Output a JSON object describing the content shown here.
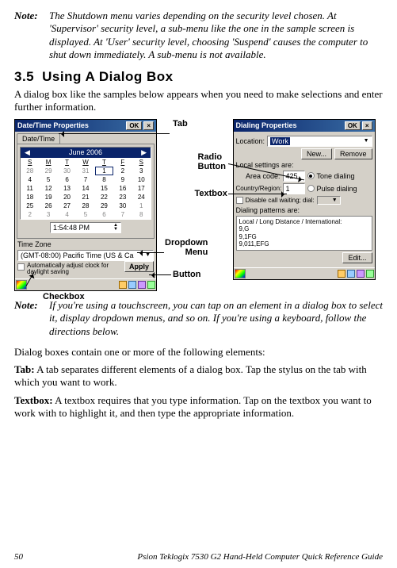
{
  "note1": {
    "label": "Note:",
    "text": "The Shutdown menu varies depending on the security level chosen. At 'Supervisor' security level, a sub-menu like the one in the sample screen is displayed. At 'User' security level, choosing 'Suspend' causes the computer to shut down immediately. A sub-menu is not available."
  },
  "heading": {
    "num": "3.5",
    "title": "Using A Dialog Box"
  },
  "intro": "A dialog box like the samples below appears when you need to make selections and enter further information.",
  "callouts": {
    "tab": "Tab",
    "radio": "Radio Button",
    "textbox": "Textbox",
    "dropdown": "Dropdown Menu",
    "button": "Button",
    "checkbox": "Checkbox"
  },
  "dlg1": {
    "title": "Date/Time Properties",
    "ok": "OK",
    "tab": "Date/Time",
    "month": "June 2006",
    "dow": [
      "S",
      "M",
      "T",
      "W",
      "T",
      "F",
      "S"
    ],
    "weeks": [
      [
        "28",
        "29",
        "30",
        "31",
        "1",
        "2",
        "3"
      ],
      [
        "4",
        "5",
        "6",
        "7",
        "8",
        "9",
        "10"
      ],
      [
        "11",
        "12",
        "13",
        "14",
        "15",
        "16",
        "17"
      ],
      [
        "18",
        "19",
        "20",
        "21",
        "22",
        "23",
        "24"
      ],
      [
        "25",
        "26",
        "27",
        "28",
        "29",
        "30",
        "1"
      ],
      [
        "2",
        "3",
        "4",
        "5",
        "6",
        "7",
        "8"
      ]
    ],
    "selected_day": "1",
    "time": "1:54:48 PM",
    "tz_label": "Time Zone",
    "tz_value": "(GMT-08:00) Pacific Time (US & Ca",
    "chk": "Automatically adjust clock for daylight saving",
    "apply": "Apply"
  },
  "dlg2": {
    "title": "Dialing Properties",
    "ok": "OK",
    "loc_label": "Location:",
    "loc_value": "Work",
    "new_btn": "New...",
    "remove_btn": "Remove",
    "local_label": "Local settings are:",
    "area_label": "Area code:",
    "area_value": "425",
    "tone": "Tone dialing",
    "pulse": "Pulse dialing",
    "country_label": "Country/Region:",
    "country_value": "1",
    "callwait": "Disable call waiting; dial:",
    "pat_label": "Dialing patterns are:",
    "pat_text": "Local / Long Distance / International:\n9,G\n9,1FG\n9,011,EFG",
    "edit_btn": "Edit..."
  },
  "note2": {
    "label": "Note:",
    "text": "If you're using a touchscreen, you can tap on an element in a dialog box to select it, display dropdown menus, and so on. If you're using a keyboard, follow the directions below."
  },
  "body2": "Dialog boxes contain one or more of the following elements:",
  "para_tab": {
    "head": "Tab:",
    "text": " A tab separates different elements of a dialog box. Tap the stylus on the tab with which you want to work."
  },
  "para_textbox": {
    "head": "Textbox:",
    "text": " A textbox requires that you type information. Tap on the textbox you want to work with to highlight it, and then type the appropriate information."
  },
  "footer": {
    "page": "50",
    "title": "Psion Teklogix 7530 G2 Hand-Held Computer Quick Reference Guide"
  }
}
